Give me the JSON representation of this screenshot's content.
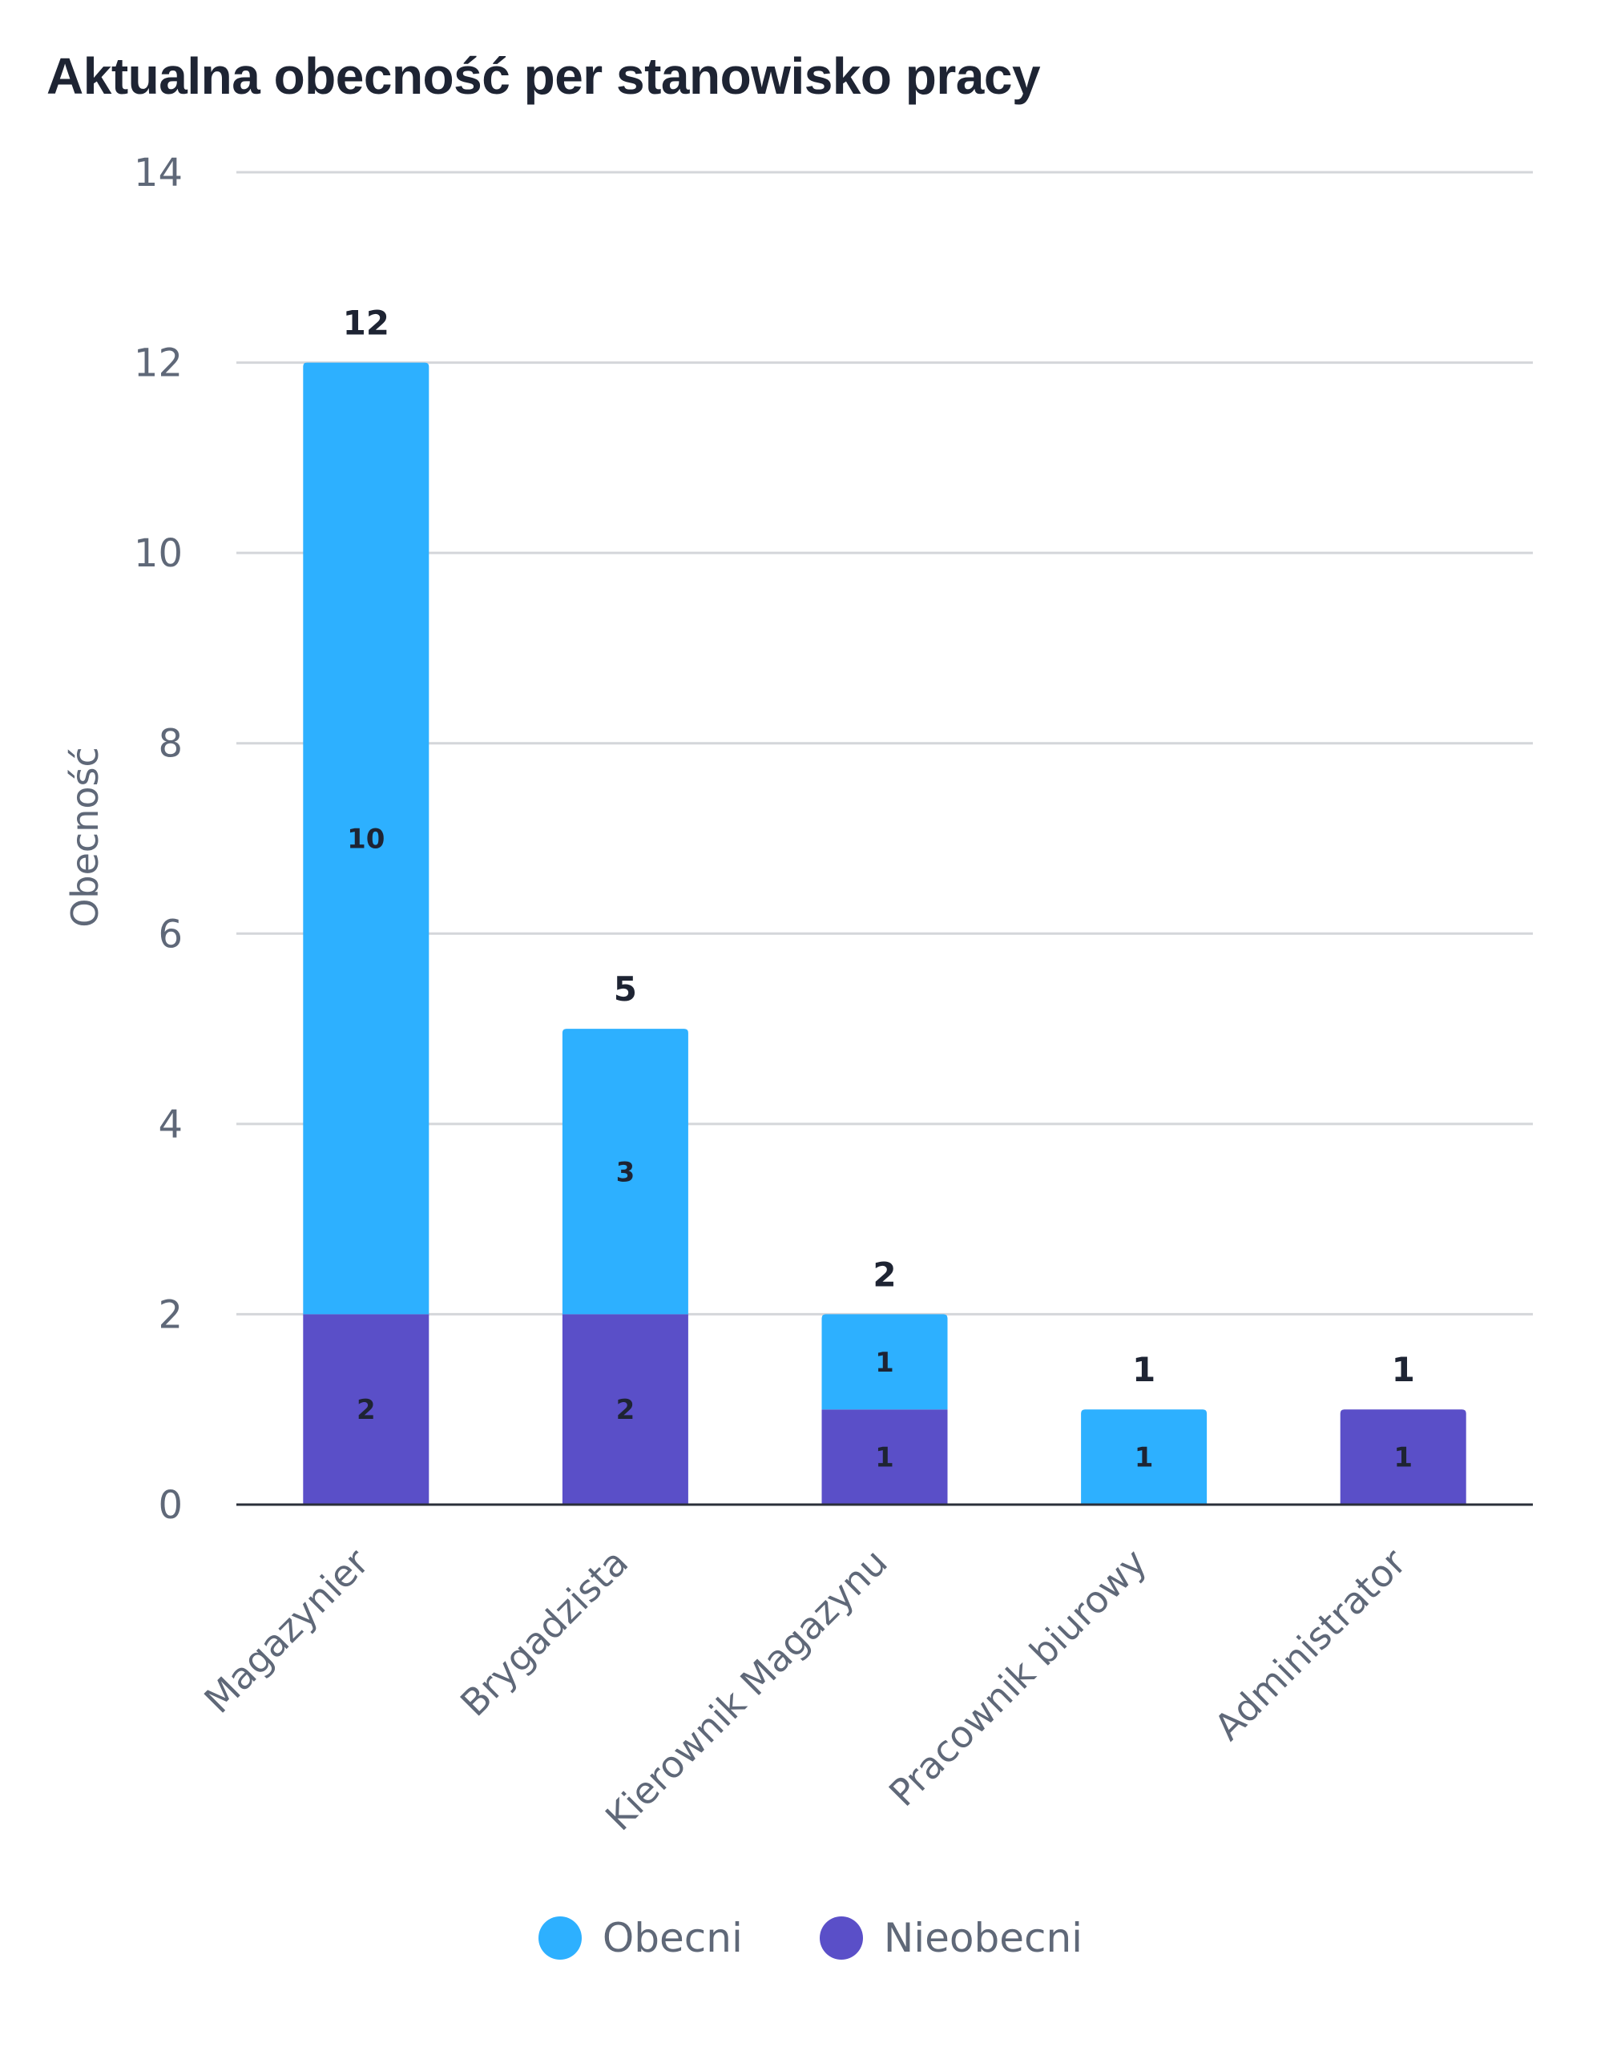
{
  "colors": {
    "obecni": "#2db0ff",
    "nieobecni": "#5a4fc8",
    "grid": "#d4d6da",
    "axis": "#2a2f3a"
  },
  "chart_data": {
    "type": "bar",
    "stacked": true,
    "title": "Aktualna obecność per stanowisko pracy",
    "ylabel": "Obecność",
    "xlabel": "",
    "ylim": [
      0,
      14
    ],
    "yticks": [
      0,
      2,
      4,
      6,
      8,
      10,
      12,
      14
    ],
    "grid": true,
    "legend_position": "bottom",
    "categories": [
      "Magazynier",
      "Brygadzista",
      "Kierownik Magazynu",
      "Pracownik biurowy",
      "Administrator"
    ],
    "series": [
      {
        "name": "Nieobecni",
        "values": [
          2,
          2,
          1,
          0,
          1
        ]
      },
      {
        "name": "Obecni",
        "values": [
          10,
          3,
          1,
          1,
          0
        ]
      }
    ],
    "totals": [
      12,
      5,
      2,
      1,
      1
    ]
  },
  "legend": [
    {
      "label": "Obecni",
      "color": "#2db0ff"
    },
    {
      "label": "Nieobecni",
      "color": "#5a4fc8"
    }
  ]
}
